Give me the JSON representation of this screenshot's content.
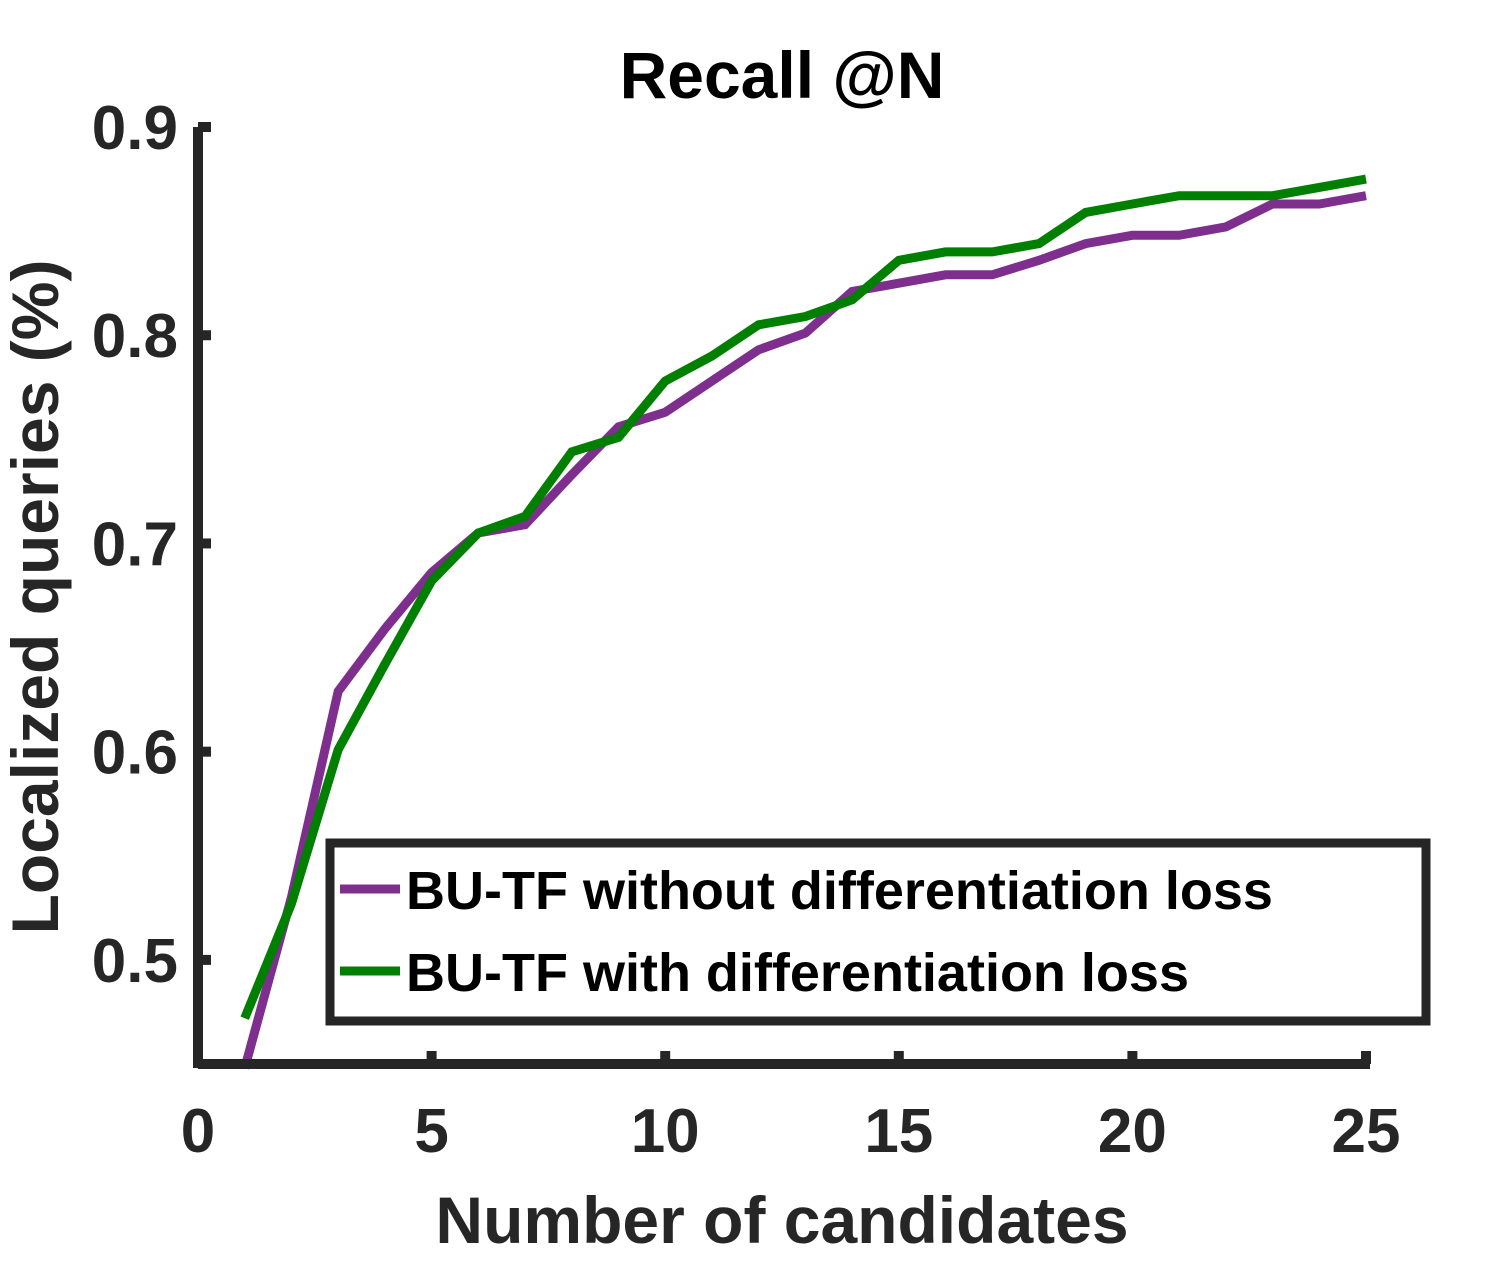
{
  "chart_data": {
    "type": "line",
    "title": "Recall @N",
    "xlabel": "Number of candidates",
    "ylabel": "Localized queries (%)",
    "xlim": [
      0,
      25
    ],
    "ylim": [
      0.45,
      0.9
    ],
    "xticks": [
      0,
      5,
      10,
      15,
      20,
      25
    ],
    "xtick_labels": [
      "0",
      "5",
      "10",
      "15",
      "20",
      "25"
    ],
    "yticks": [
      0.5,
      0.6,
      0.7,
      0.8,
      0.9
    ],
    "ytick_labels": [
      "0.5",
      "0.6",
      "0.7",
      "0.8",
      "0.9"
    ],
    "grid": false,
    "legend_position": "bottom-right",
    "x": [
      1,
      2,
      3,
      4,
      5,
      6,
      7,
      8,
      9,
      10,
      11,
      12,
      13,
      14,
      15,
      16,
      17,
      18,
      19,
      20,
      21,
      22,
      23,
      24,
      25
    ],
    "series": [
      {
        "name": "BU-TF without differentiation loss",
        "color": "#7e2f8e",
        "values": [
          0.448,
          0.53,
          0.629,
          0.659,
          0.686,
          0.705,
          0.709,
          0.733,
          0.756,
          0.763,
          0.778,
          0.793,
          0.801,
          0.821,
          0.825,
          0.829,
          0.829,
          0.836,
          0.844,
          0.848,
          0.848,
          0.852,
          0.863,
          0.863,
          0.867
        ]
      },
      {
        "name": "BU-TF with differentiation loss",
        "color": "#007f00",
        "values": [
          0.472,
          0.527,
          0.601,
          0.642,
          0.682,
          0.705,
          0.713,
          0.744,
          0.751,
          0.778,
          0.79,
          0.805,
          0.809,
          0.817,
          0.836,
          0.84,
          0.84,
          0.844,
          0.859,
          0.863,
          0.867,
          0.867,
          0.867,
          0.871,
          0.875
        ]
      }
    ]
  }
}
